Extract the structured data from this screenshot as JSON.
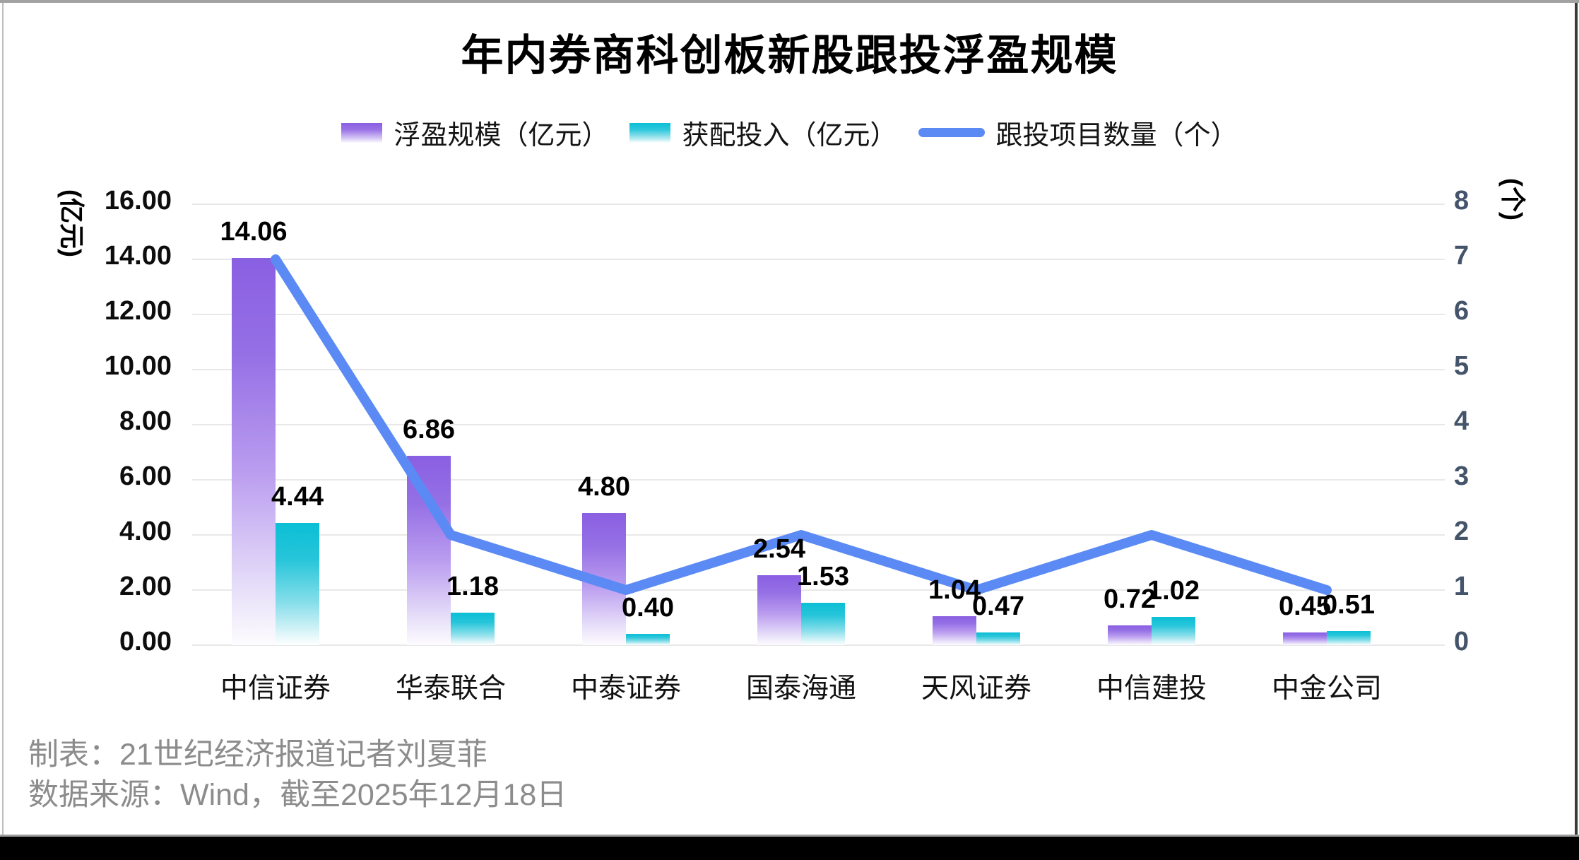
{
  "title": "年内券商科创板新股跟投浮盈规模",
  "legend": [
    {
      "label": "浮盈规模（亿元）",
      "swatch": "purple-gradient-bar"
    },
    {
      "label": "获配投入（亿元）",
      "swatch": "teal-gradient-bar"
    },
    {
      "label": "跟投项目数量（个）",
      "swatch": "blue-line"
    }
  ],
  "axes": {
    "left": {
      "title": "(亿元)",
      "ticks": [
        "16.00",
        "14.00",
        "12.00",
        "10.00",
        "8.00",
        "6.00",
        "4.00",
        "2.00",
        "0.00"
      ]
    },
    "right": {
      "title": "(个)",
      "ticks": [
        "8",
        "7",
        "6",
        "5",
        "4",
        "3",
        "2",
        "1",
        "0"
      ]
    }
  },
  "footer": {
    "line1": "制表：21世纪经济报道记者刘夏菲",
    "line2": "数据来源：Wind，截至2025年12月18日"
  },
  "colors": {
    "bar_profit_top": "#8A5FE2",
    "bar_invest_top": "#0BBFD5",
    "line_count": "#5B8AF5",
    "gridline": "#E8E8E8",
    "left_tick_text": "#0D0D0D",
    "right_tick_text": "#44546A",
    "footer_text": "#8C8C8C",
    "background": "#FFFFFF"
  },
  "chart_data": {
    "type": "bar",
    "subtype": "combo-bar-line-dual-axis",
    "title": "年内券商科创板新股跟投浮盈规模",
    "categories": [
      "中信证券",
      "华泰联合",
      "中泰证券",
      "国泰海通",
      "天风证券",
      "中信建投",
      "中金公司"
    ],
    "series": [
      {
        "name": "浮盈规模（亿元）",
        "type": "bar",
        "axis": "left",
        "values": [
          14.06,
          6.86,
          4.8,
          2.54,
          1.04,
          0.72,
          0.45
        ]
      },
      {
        "name": "获配投入（亿元）",
        "type": "bar",
        "axis": "left",
        "values": [
          4.44,
          1.18,
          0.4,
          1.53,
          0.47,
          1.02,
          0.51
        ]
      },
      {
        "name": "跟投项目数量（个）",
        "type": "line",
        "axis": "right",
        "values": [
          7,
          2,
          1,
          2,
          1,
          2,
          1
        ]
      }
    ],
    "left_axis": {
      "label": "(亿元)",
      "range": [
        0,
        16
      ],
      "tick_step": 2,
      "tick_format": "two-decimals"
    },
    "right_axis": {
      "label": "(个)",
      "range": [
        0,
        8
      ],
      "tick_step": 1
    },
    "grid": true,
    "legend_position": "top",
    "data_labels": "bars-outside-end"
  }
}
